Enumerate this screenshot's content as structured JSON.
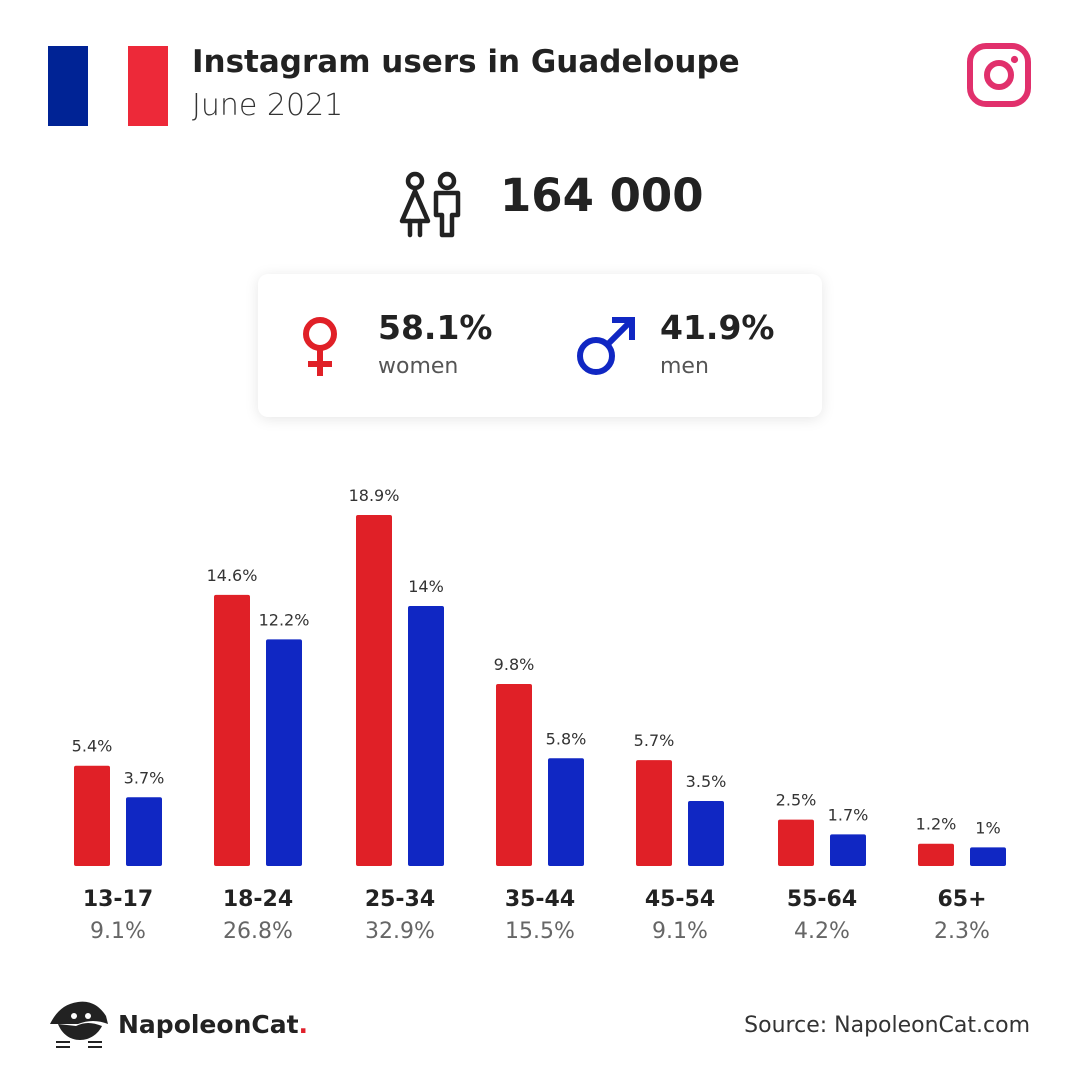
{
  "header": {
    "title": "Instagram users in Guadeloupe",
    "subtitle": "June 2021",
    "flag_colors": [
      "#002395",
      "#ffffff",
      "#ED2939"
    ],
    "logo_icon": "instagram-icon",
    "logo_color": "#E1306C"
  },
  "totals": {
    "users": "164 000",
    "users_icon": "people-icon",
    "women_pct": "58.1%",
    "women_label": "women",
    "women_icon": "female-symbol-icon",
    "men_pct": "41.9%",
    "men_label": "men",
    "men_icon": "male-symbol-icon"
  },
  "colors": {
    "women": "#E02027",
    "men": "#1027C3"
  },
  "chart_data": {
    "type": "bar",
    "categories": [
      "13-17",
      "18-24",
      "25-34",
      "35-44",
      "45-54",
      "55-64",
      "65+"
    ],
    "category_totals": [
      "9.1%",
      "26.8%",
      "32.9%",
      "15.5%",
      "9.1%",
      "4.2%",
      "2.3%"
    ],
    "series": [
      {
        "values": [
          5.4,
          14.6,
          18.9,
          9.8,
          5.7,
          2.5,
          1.2
        ],
        "labels": [
          "5.4%",
          "14.6%",
          "18.9%",
          "9.8%",
          "5.7%",
          "2.5%",
          "1.2%"
        ],
        "color": "#E02027"
      },
      {
        "values": [
          3.7,
          12.2,
          14,
          5.8,
          3.5,
          1.7,
          1
        ],
        "labels": [
          "3.7%",
          "12.2%",
          "14%",
          "5.8%",
          "3.5%",
          "1.7%",
          "1%"
        ],
        "color": "#1027C3"
      }
    ],
    "ylim": [
      0,
      18.9
    ],
    "grid": false
  },
  "footer": {
    "brand": "NapoleonCat",
    "brand_dot": ".",
    "brand_icon": "napoleoncat-logo-icon",
    "source": "Source: NapoleonCat.com"
  }
}
